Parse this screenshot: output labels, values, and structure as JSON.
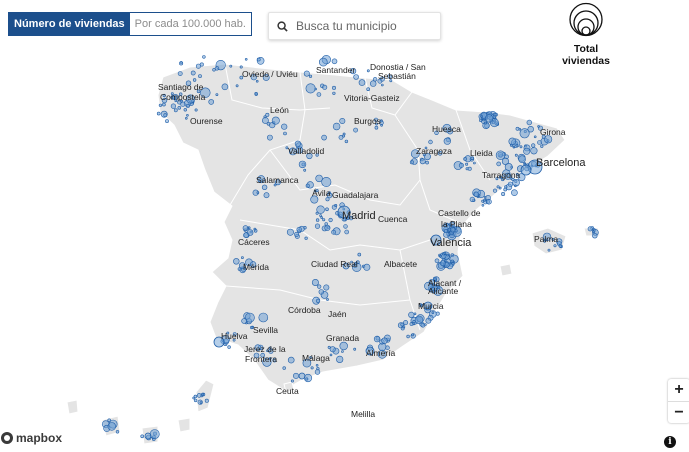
{
  "toggle": {
    "active_label": "Número de viviendas",
    "inactive_label": "Por cada 100.000 hab."
  },
  "search": {
    "placeholder": "Busca tu municipio",
    "icon": "search-icon"
  },
  "legend": {
    "title": "Total viviendas"
  },
  "zoom": {
    "in_label": "+",
    "out_label": "−"
  },
  "attribution": {
    "logo_text": "mapbox",
    "info_label": "i"
  },
  "colors": {
    "land": "#e4e4e4",
    "border": "#ffffff",
    "dot_fill": "#6d9fd4",
    "dot_stroke": "#1f5ea8",
    "sea": "#ffffff",
    "accent": "#1c4f8c"
  },
  "cities": [
    {
      "name": "Santiago de"
    },
    {
      "name": "Compostela"
    },
    {
      "name": "Oviedo / Uviéu"
    },
    {
      "name": "Santander"
    },
    {
      "name": "Donostia / San"
    },
    {
      "name": "Sebastián"
    },
    {
      "name": "Vitoria-Gasteiz"
    },
    {
      "name": "Ourense"
    },
    {
      "name": "León"
    },
    {
      "name": "Burgos"
    },
    {
      "name": "Huesca"
    },
    {
      "name": "Girona"
    },
    {
      "name": "Lleida"
    },
    {
      "name": "Zaragoza"
    },
    {
      "name": "Valladolid"
    },
    {
      "name": "Barcelona"
    },
    {
      "name": "Tarragona"
    },
    {
      "name": "Salamanca"
    },
    {
      "name": "Guadalajara"
    },
    {
      "name": "Ávila"
    },
    {
      "name": "Madrid"
    },
    {
      "name": "Castello de"
    },
    {
      "name": "la Plana"
    },
    {
      "name": "Cuenca"
    },
    {
      "name": "Palma"
    },
    {
      "name": "Valencia"
    },
    {
      "name": "Cáceres"
    },
    {
      "name": "Mérida"
    },
    {
      "name": "Ciudad Real"
    },
    {
      "name": "Albacete"
    },
    {
      "name": "Alacant /"
    },
    {
      "name": "Alicante"
    },
    {
      "name": "Murcia"
    },
    {
      "name": "Córdoba"
    },
    {
      "name": "Jaén"
    },
    {
      "name": "Huelva"
    },
    {
      "name": "Sevilla"
    },
    {
      "name": "Jerez de la"
    },
    {
      "name": "Frontera"
    },
    {
      "name": "Granada"
    },
    {
      "name": "Almería"
    },
    {
      "name": "Málaga"
    },
    {
      "name": "Ceuta"
    },
    {
      "name": "Melilla"
    }
  ]
}
